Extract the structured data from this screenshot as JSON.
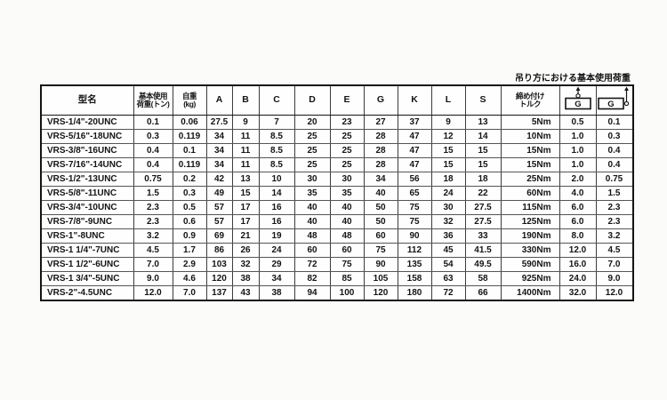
{
  "page": {
    "annotation": "吊り方における基本使用荷重"
  },
  "table": {
    "columns": [
      {
        "key": "model",
        "label": "型名"
      },
      {
        "key": "wll",
        "label": "基本使用",
        "label2": "荷重(トン)"
      },
      {
        "key": "weight",
        "label": "自重",
        "label2": "(kg)"
      },
      {
        "key": "A",
        "label": "A"
      },
      {
        "key": "B",
        "label": "B"
      },
      {
        "key": "C",
        "label": "C"
      },
      {
        "key": "D",
        "label": "D"
      },
      {
        "key": "E",
        "label": "E"
      },
      {
        "key": "G",
        "label": "G"
      },
      {
        "key": "K",
        "label": "K"
      },
      {
        "key": "L",
        "label": "L"
      },
      {
        "key": "S",
        "label": "S"
      },
      {
        "key": "torque",
        "label": "締め付け",
        "label2": "トルク"
      },
      {
        "key": "g_vertical",
        "label": "G",
        "icon": "vertical-lift-icon"
      },
      {
        "key": "g_side",
        "label": "G",
        "icon": "side-lift-icon"
      }
    ],
    "rows": [
      [
        "VRS-1/4\"-20UNC",
        "0.1",
        "0.06",
        "27.5",
        "9",
        "7",
        "20",
        "23",
        "27",
        "37",
        "9",
        "13",
        "5Nm",
        "0.5",
        "0.1"
      ],
      [
        "VRS-5/16\"-18UNC",
        "0.3",
        "0.119",
        "34",
        "11",
        "8.5",
        "25",
        "25",
        "28",
        "47",
        "12",
        "14",
        "10Nm",
        "1.0",
        "0.3"
      ],
      [
        "VRS-3/8\"-16UNC",
        "0.4",
        "0.1",
        "34",
        "11",
        "8.5",
        "25",
        "25",
        "28",
        "47",
        "15",
        "15",
        "15Nm",
        "1.0",
        "0.4"
      ],
      [
        "VRS-7/16\"-14UNC",
        "0.4",
        "0.119",
        "34",
        "11",
        "8.5",
        "25",
        "25",
        "28",
        "47",
        "15",
        "15",
        "15Nm",
        "1.0",
        "0.4"
      ],
      [
        "VRS-1/2\"-13UNC",
        "0.75",
        "0.2",
        "42",
        "13",
        "10",
        "30",
        "30",
        "34",
        "56",
        "18",
        "18",
        "25Nm",
        "2.0",
        "0.75"
      ],
      [
        "VRS-5/8\"-11UNC",
        "1.5",
        "0.3",
        "49",
        "15",
        "14",
        "35",
        "35",
        "40",
        "65",
        "24",
        "22",
        "60Nm",
        "4.0",
        "1.5"
      ],
      [
        "VRS-3/4\"-10UNC",
        "2.3",
        "0.5",
        "57",
        "17",
        "16",
        "40",
        "40",
        "50",
        "75",
        "30",
        "27.5",
        "115Nm",
        "6.0",
        "2.3"
      ],
      [
        "VRS-7/8\"-9UNC",
        "2.3",
        "0.6",
        "57",
        "17",
        "16",
        "40",
        "40",
        "50",
        "75",
        "32",
        "27.5",
        "125Nm",
        "6.0",
        "2.3"
      ],
      [
        "VRS-1\"-8UNC",
        "3.2",
        "0.9",
        "69",
        "21",
        "19",
        "48",
        "48",
        "60",
        "90",
        "36",
        "33",
        "190Nm",
        "8.0",
        "3.2"
      ],
      [
        "VRS-1 1/4\"-7UNC",
        "4.5",
        "1.7",
        "86",
        "26",
        "24",
        "60",
        "60",
        "75",
        "112",
        "45",
        "41.5",
        "330Nm",
        "12.0",
        "4.5"
      ],
      [
        "VRS-1 1/2\"-6UNC",
        "7.0",
        "2.9",
        "103",
        "32",
        "29",
        "72",
        "75",
        "90",
        "135",
        "54",
        "49.5",
        "590Nm",
        "16.0",
        "7.0"
      ],
      [
        "VRS-1 3/4\"-5UNC",
        "9.0",
        "4.6",
        "120",
        "38",
        "34",
        "82",
        "85",
        "105",
        "158",
        "63",
        "58",
        "925Nm",
        "24.0",
        "9.0"
      ],
      [
        "VRS-2\"-4.5UNC",
        "12.0",
        "7.0",
        "137",
        "43",
        "38",
        "94",
        "100",
        "120",
        "180",
        "72",
        "66",
        "1400Nm",
        "32.0",
        "12.0"
      ]
    ]
  }
}
